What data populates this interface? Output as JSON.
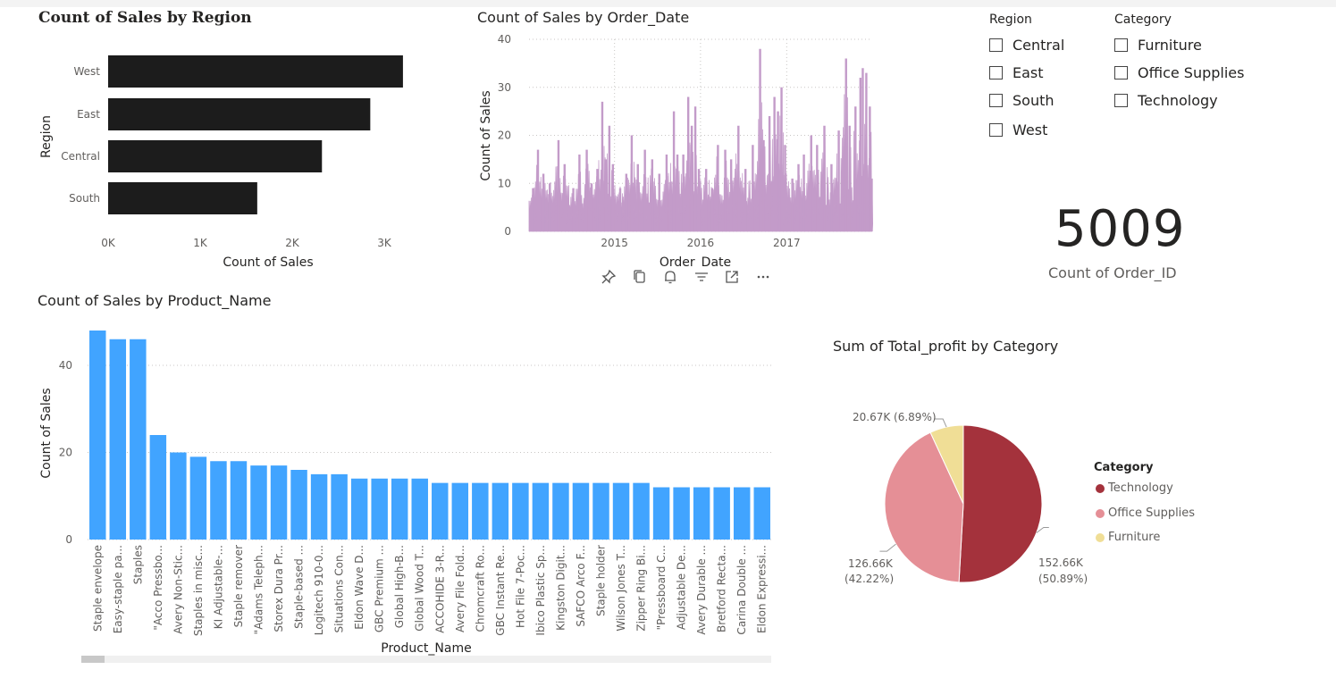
{
  "region_chart": {
    "title": "Count of Sales by Region",
    "xlabel": "Count of Sales",
    "ylabel": "Region",
    "xticks": [
      "0K",
      "1K",
      "2K",
      "3K"
    ]
  },
  "date_chart": {
    "title": "Count of Sales by Order_Date",
    "xlabel": "Order_Date",
    "ylabel": "Count of Sales",
    "yticks": [
      "0",
      "10",
      "20",
      "30",
      "40"
    ],
    "xticks": [
      "2015",
      "2016",
      "2017"
    ]
  },
  "product_chart": {
    "title": "Count of Sales by Product_Name",
    "xlabel": "Product_Name",
    "ylabel": "Count of Sales",
    "yticks": [
      "0",
      "20",
      "40"
    ]
  },
  "pie_chart": {
    "title": "Sum of Total_profit by Category",
    "legend_title": "Category",
    "labels": [
      {
        "line1": "152.66K",
        "line2": "(50.89%)"
      },
      {
        "line1": "126.66K",
        "line2": "(42.22%)"
      },
      {
        "line1": "20.67K (6.89%)",
        "line2": ""
      }
    ]
  },
  "slicers": {
    "region": {
      "title": "Region",
      "options": [
        "Central",
        "East",
        "South",
        "West"
      ]
    },
    "category": {
      "title": "Category",
      "options": [
        "Furniture",
        "Office Supplies",
        "Technology"
      ]
    }
  },
  "card": {
    "value": "5009",
    "label": "Count of Order_ID"
  },
  "visual_header_icons": [
    "pin-icon",
    "copy-icon",
    "bell-icon",
    "filter-icon",
    "focus-mode-icon",
    "more-options-icon"
  ],
  "chart_data": [
    {
      "type": "bar",
      "orientation": "horizontal",
      "title": "Count of Sales by Region",
      "xlabel": "Count of Sales",
      "ylabel": "Region",
      "categories": [
        "West",
        "East",
        "Central",
        "South"
      ],
      "values": [
        3203,
        2848,
        2323,
        1620
      ],
      "xlim": [
        0,
        3300
      ],
      "color": "#1c1c1c",
      "grid": false
    },
    {
      "type": "area",
      "title": "Count of Sales by Order_Date",
      "xlabel": "Order_Date",
      "ylabel": "Count of Sales",
      "ylim": [
        0,
        40
      ],
      "xlim": [
        "2014-01-03",
        "2017-12-30"
      ],
      "xticks": [
        "2015",
        "2016",
        "2017"
      ],
      "color": "#c39bc9",
      "grid": true,
      "peaks": [
        {
          "x": "2014-01-20",
          "y": 9
        },
        {
          "x": "2014-02-10",
          "y": 17
        },
        {
          "x": "2014-03-05",
          "y": 12
        },
        {
          "x": "2014-04-01",
          "y": 10
        },
        {
          "x": "2014-05-08",
          "y": 19
        },
        {
          "x": "2014-06-03",
          "y": 14
        },
        {
          "x": "2014-07-10",
          "y": 9
        },
        {
          "x": "2014-08-05",
          "y": 16
        },
        {
          "x": "2014-09-05",
          "y": 17
        },
        {
          "x": "2014-09-25",
          "y": 10
        },
        {
          "x": "2014-10-20",
          "y": 13
        },
        {
          "x": "2014-11-10",
          "y": 27
        },
        {
          "x": "2014-11-25",
          "y": 15
        },
        {
          "x": "2014-12-10",
          "y": 22
        },
        {
          "x": "2014-12-25",
          "y": 14
        },
        {
          "x": "2015-01-25",
          "y": 9
        },
        {
          "x": "2015-02-20",
          "y": 12
        },
        {
          "x": "2015-03-15",
          "y": 20
        },
        {
          "x": "2015-04-10",
          "y": 14
        },
        {
          "x": "2015-05-10",
          "y": 17
        },
        {
          "x": "2015-06-10",
          "y": 15
        },
        {
          "x": "2015-07-10",
          "y": 12
        },
        {
          "x": "2015-08-10",
          "y": 16
        },
        {
          "x": "2015-09-10",
          "y": 25
        },
        {
          "x": "2015-09-25",
          "y": 16
        },
        {
          "x": "2015-10-20",
          "y": 16
        },
        {
          "x": "2015-11-10",
          "y": 28
        },
        {
          "x": "2015-11-25",
          "y": 22
        },
        {
          "x": "2015-12-10",
          "y": 26
        },
        {
          "x": "2015-12-25",
          "y": 13
        },
        {
          "x": "2016-01-25",
          "y": 13
        },
        {
          "x": "2016-02-20",
          "y": 9
        },
        {
          "x": "2016-03-15",
          "y": 18
        },
        {
          "x": "2016-04-15",
          "y": 17
        },
        {
          "x": "2016-05-10",
          "y": 15
        },
        {
          "x": "2016-06-10",
          "y": 22
        },
        {
          "x": "2016-07-10",
          "y": 13
        },
        {
          "x": "2016-08-10",
          "y": 18
        },
        {
          "x": "2016-09-10",
          "y": 38
        },
        {
          "x": "2016-09-25",
          "y": 19
        },
        {
          "x": "2016-10-20",
          "y": 24
        },
        {
          "x": "2016-11-10",
          "y": 28
        },
        {
          "x": "2016-11-25",
          "y": 25
        },
        {
          "x": "2016-12-10",
          "y": 30
        },
        {
          "x": "2016-12-25",
          "y": 18
        },
        {
          "x": "2017-01-25",
          "y": 11
        },
        {
          "x": "2017-02-20",
          "y": 14
        },
        {
          "x": "2017-03-15",
          "y": 16
        },
        {
          "x": "2017-04-15",
          "y": 20
        },
        {
          "x": "2017-05-10",
          "y": 18
        },
        {
          "x": "2017-06-10",
          "y": 22
        },
        {
          "x": "2017-07-10",
          "y": 14
        },
        {
          "x": "2017-08-10",
          "y": 21
        },
        {
          "x": "2017-09-10",
          "y": 36
        },
        {
          "x": "2017-09-25",
          "y": 22
        },
        {
          "x": "2017-10-20",
          "y": 26
        },
        {
          "x": "2017-11-10",
          "y": 32
        },
        {
          "x": "2017-11-20",
          "y": 34
        },
        {
          "x": "2017-12-05",
          "y": 33
        },
        {
          "x": "2017-12-20",
          "y": 26
        },
        {
          "x": "2017-12-28",
          "y": 11
        }
      ]
    },
    {
      "type": "bar",
      "title": "Count of Sales by Product_Name",
      "xlabel": "Product_Name",
      "ylabel": "Count of Sales",
      "ylim": [
        0,
        48
      ],
      "color": "#41a4ff",
      "grid": true,
      "categories": [
        "Staple envelope",
        "Easy-staple pa...",
        "Staples",
        "\"Acco Pressbo...",
        "Avery Non-Stic...",
        "Staples in misc...",
        "KI Adjustable-...",
        "Staple remover",
        "\"Adams Teleph...",
        "Storex Dura Pr...",
        "Staple-based ...",
        "Logitech 910-0...",
        "Situations Con...",
        "Eldon Wave D...",
        "GBC Premium ...",
        "Global High-B...",
        "Global Wood T...",
        "ACCOHIDE 3-R...",
        "Avery File Fold...",
        "Chromcraft Ro...",
        "GBC Instant Re...",
        "Hot File 7-Poc...",
        "Ibico Plastic Sp...",
        "Kingston Digit...",
        "SAFCO Arco F...",
        "Staple holder",
        "Wilson Jones T...",
        "Zipper Ring Bi...",
        "\"Pressboard C...",
        "Adjustable De...",
        "Avery Durable ...",
        "Bretford Recta...",
        "Carina Double ...",
        "Eldon Expressi..."
      ],
      "values": [
        48,
        46,
        46,
        24,
        20,
        19,
        18,
        18,
        17,
        17,
        16,
        15,
        15,
        14,
        14,
        14,
        14,
        13,
        13,
        13,
        13,
        13,
        13,
        13,
        13,
        13,
        13,
        13,
        12,
        12,
        12,
        12,
        12,
        12
      ]
    },
    {
      "type": "pie",
      "title": "Sum of Total_profit by Category",
      "legend_title": "Category",
      "legend_position": "right",
      "slices": [
        {
          "label": "Technology",
          "value": 152.66,
          "percent": 50.89,
          "color": "#a4323c"
        },
        {
          "label": "Office Supplies",
          "value": 126.66,
          "percent": 42.22,
          "color": "#e58f96"
        },
        {
          "label": "Furniture",
          "value": 20.67,
          "percent": 6.89,
          "color": "#f0de96"
        }
      ]
    }
  ]
}
